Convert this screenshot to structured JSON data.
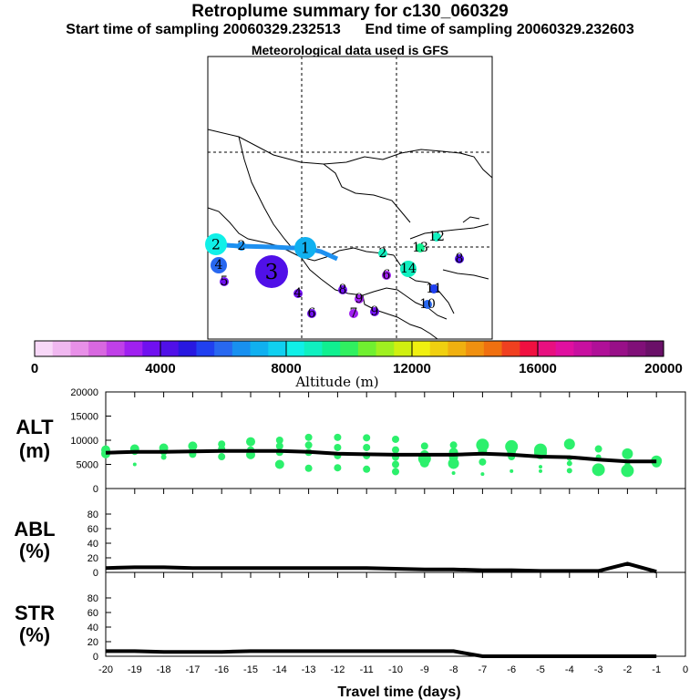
{
  "titles": {
    "main": "Retroplume summary for c130_060329",
    "start_label": "Start time of sampling 20060329.232513",
    "end_label": "End time of sampling 20060329.232603",
    "met": "Meteorological data used is GFS"
  },
  "colorbar": {
    "label": "Altitude  (m)",
    "ticks": [
      "0",
      "4000",
      "8000",
      "12000",
      "16000",
      "20000"
    ],
    "colors": [
      "#f8d8f8",
      "#f0b8f0",
      "#e890e8",
      "#d868e0",
      "#c040e8",
      "#a020f0",
      "#7010f0",
      "#5010e8",
      "#2818e0",
      "#2040f0",
      "#2868f0",
      "#1890f0",
      "#10b0f0",
      "#10d0f0",
      "#10f0e8",
      "#10f0c0",
      "#10f090",
      "#30f060",
      "#70f030",
      "#a0f020",
      "#d0f010",
      "#f0f010",
      "#f0d010",
      "#f0b010",
      "#f09010",
      "#f07010",
      "#f04020",
      "#f01040",
      "#e81080",
      "#e010a0",
      "#c810a0",
      "#b01098",
      "#981088",
      "#801078",
      "#6a1068"
    ]
  },
  "map": {
    "plume_points": [
      {
        "label": "1",
        "altitude": 7000,
        "size": 3
      },
      {
        "label": "2",
        "altitude": 8500,
        "size": 3
      },
      {
        "label": "2",
        "altitude": 6500,
        "size": 1
      },
      {
        "label": "2",
        "altitude": 9000,
        "size": 1
      },
      {
        "label": "3",
        "altitude": 4300,
        "size": 4
      },
      {
        "label": "4",
        "altitude": 6000,
        "size": 2
      },
      {
        "label": "4",
        "altitude": 3800,
        "size": 1
      },
      {
        "label": "5",
        "altitude": 3500,
        "size": 1
      },
      {
        "label": "6",
        "altitude": 3800,
        "size": 1
      },
      {
        "label": "6",
        "altitude": 3200,
        "size": 1
      },
      {
        "label": "7",
        "altitude": 3000,
        "size": 1
      },
      {
        "label": "8",
        "altitude": 3500,
        "size": 1
      },
      {
        "label": "8",
        "altitude": 4200,
        "size": 1
      },
      {
        "label": "9",
        "altitude": 3000,
        "size": 1
      },
      {
        "label": "9",
        "altitude": 3500,
        "size": 1
      },
      {
        "label": "10",
        "altitude": 6000,
        "size": 1
      },
      {
        "label": "11",
        "altitude": 5200,
        "size": 1
      },
      {
        "label": "12",
        "altitude": 9000,
        "size": 1
      },
      {
        "label": "13",
        "altitude": 9500,
        "size": 1
      },
      {
        "label": "14",
        "altitude": 9000,
        "size": 2
      }
    ]
  },
  "chart_data": [
    {
      "type": "line",
      "title": "ALT",
      "ylabel": "(m)",
      "ylim": [
        0,
        20000
      ],
      "yticks": [
        "0",
        "5000",
        "10000",
        "15000",
        "20000"
      ],
      "x": [
        -20,
        -19,
        -18,
        -17,
        -16,
        -15,
        -14,
        -13,
        -12,
        -11,
        -10,
        -9,
        -8,
        -7,
        -6,
        -5,
        -4,
        -3,
        -2,
        -1
      ],
      "series": [
        {
          "name": "median altitude",
          "values": [
            7400,
            7600,
            7600,
            7700,
            7800,
            7800,
            7800,
            7600,
            7200,
            7100,
            7000,
            7000,
            7000,
            7200,
            7000,
            6600,
            6500,
            6000,
            5600,
            5600
          ]
        }
      ],
      "scatter": [
        {
          "x": -20,
          "y": [
            8000,
            7200
          ],
          "size": [
            5,
            5
          ]
        },
        {
          "x": -19,
          "y": [
            8200,
            7700,
            5000
          ],
          "size": [
            5,
            4,
            2
          ]
        },
        {
          "x": -18,
          "y": [
            8400,
            7600,
            6500
          ],
          "size": [
            5,
            4,
            3
          ]
        },
        {
          "x": -17,
          "y": [
            8800,
            7800,
            7100
          ],
          "size": [
            5,
            4,
            4
          ]
        },
        {
          "x": -16,
          "y": [
            9200,
            8200,
            6600
          ],
          "size": [
            4,
            4,
            4
          ]
        },
        {
          "x": -15,
          "y": [
            9700,
            8000,
            7000
          ],
          "size": [
            5,
            4,
            5
          ]
        },
        {
          "x": -14,
          "y": [
            10000,
            8800,
            7500,
            5000
          ],
          "size": [
            4,
            4,
            4,
            5
          ]
        },
        {
          "x": -13,
          "y": [
            10600,
            9000,
            7500,
            4200
          ],
          "size": [
            4,
            4,
            4,
            4
          ]
        },
        {
          "x": -12,
          "y": [
            10600,
            8500,
            6800,
            4300
          ],
          "size": [
            4,
            4,
            4,
            4
          ]
        },
        {
          "x": -11,
          "y": [
            10500,
            8500,
            6800,
            4000
          ],
          "size": [
            4,
            4,
            4,
            4
          ]
        },
        {
          "x": -10,
          "y": [
            10200,
            8000,
            6500,
            5000,
            3500
          ],
          "size": [
            4,
            4,
            4,
            4,
            4
          ]
        },
        {
          "x": -9,
          "y": [
            8800,
            7000,
            6200,
            5300
          ],
          "size": [
            4,
            5,
            7,
            5
          ]
        },
        {
          "x": -8,
          "y": [
            9000,
            7500,
            6500,
            5200,
            3200
          ],
          "size": [
            4,
            5,
            5,
            6,
            2
          ]
        },
        {
          "x": -7,
          "y": [
            9000,
            7800,
            5500,
            3000
          ],
          "size": [
            7,
            5,
            4,
            2
          ]
        },
        {
          "x": -6,
          "y": [
            8700,
            7800,
            6600,
            3600
          ],
          "size": [
            7,
            5,
            4,
            2
          ]
        },
        {
          "x": -5,
          "y": [
            8000,
            7400,
            4500,
            3600
          ],
          "size": [
            7,
            7,
            2,
            2
          ]
        },
        {
          "x": -4,
          "y": [
            9200,
            6300,
            5200,
            3700
          ],
          "size": [
            6,
            3,
            3,
            3
          ]
        },
        {
          "x": -3,
          "y": [
            8200,
            6500,
            3900
          ],
          "size": [
            4,
            3,
            7
          ]
        },
        {
          "x": -2,
          "y": [
            7200,
            5000,
            3700
          ],
          "size": [
            6,
            3,
            7
          ]
        },
        {
          "x": -1,
          "y": [
            5700,
            5300
          ],
          "size": [
            6,
            5
          ]
        }
      ]
    },
    {
      "type": "line",
      "title": "ABL",
      "ylabel": "(%)",
      "ylim": [
        0,
        100
      ],
      "yticks": [
        "0",
        "20",
        "40",
        "60",
        "80"
      ],
      "x": [
        -20,
        -19,
        -18,
        -17,
        -16,
        -15,
        -14,
        -13,
        -12,
        -11,
        -10,
        -9,
        -8,
        -7,
        -6,
        -5,
        -4,
        -3,
        -2,
        -1
      ],
      "series": [
        {
          "name": "ABL fraction",
          "values": [
            6,
            7,
            7,
            6,
            6,
            6,
            6,
            6,
            6,
            6,
            5,
            4,
            4,
            3,
            3,
            2,
            2,
            2,
            12,
            1
          ]
        }
      ]
    },
    {
      "type": "line",
      "title": "STR",
      "ylabel": "(%)",
      "ylim": [
        0,
        100
      ],
      "yticks": [
        "0",
        "20",
        "40",
        "60",
        "80"
      ],
      "x": [
        -20,
        -19,
        -18,
        -17,
        -16,
        -15,
        -14,
        -13,
        -12,
        -11,
        -10,
        -9,
        -8,
        -7,
        -6,
        -5,
        -4,
        -3,
        -2,
        -1
      ],
      "series": [
        {
          "name": "stratospheric fraction",
          "values": [
            7,
            7,
            6,
            6,
            6,
            7,
            7,
            7,
            7,
            7,
            7,
            7,
            7,
            0,
            0,
            0,
            0,
            0,
            0,
            0
          ]
        }
      ],
      "xlabel": "Travel time (days)",
      "xticks": [
        "-20",
        "-19",
        "-18",
        "-17",
        "-16",
        "-15",
        "-14",
        "-13",
        "-12",
        "-11",
        "-10",
        "-9",
        "-8",
        "-7",
        "-6",
        "-5",
        "-4",
        "-3",
        "-2",
        "-1",
        "0"
      ]
    }
  ]
}
